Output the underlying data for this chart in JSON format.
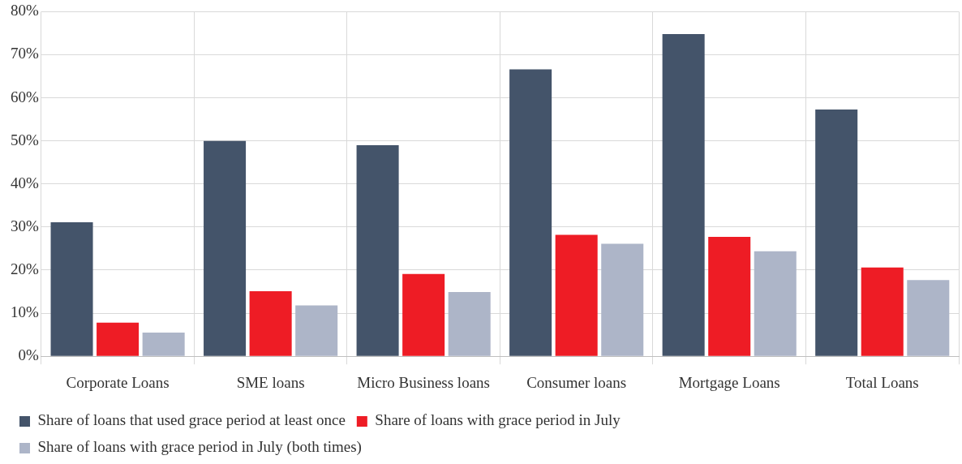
{
  "chart_data": {
    "type": "bar",
    "categories": [
      "Corporate Loans",
      "SME loans",
      "Micro Business loans",
      "Consumer loans",
      "Mortgage Loans",
      "Total Loans"
    ],
    "series": [
      {
        "name": "Share of loans that used grace period at least once",
        "color": "#44546a",
        "values": [
          31.1,
          50.0,
          49.0,
          66.6,
          74.8,
          57.3
        ]
      },
      {
        "name": "Share of loans with grace period in July",
        "color": "#ee1c25",
        "values": [
          7.8,
          15.1,
          19.1,
          28.2,
          27.7,
          20.6
        ]
      },
      {
        "name": "Share of loans with grace period in July (both times)",
        "color": "#adb5c8",
        "values": [
          5.5,
          11.8,
          14.9,
          26.1,
          24.4,
          17.7
        ]
      }
    ],
    "ylim": [
      0,
      80
    ],
    "yticks": [
      {
        "value": 0,
        "label": "0%"
      },
      {
        "value": 10,
        "label": "10%"
      },
      {
        "value": 20,
        "label": "20%"
      },
      {
        "value": 30,
        "label": "30%"
      },
      {
        "value": 40,
        "label": "40%"
      },
      {
        "value": 50,
        "label": "50%"
      },
      {
        "value": 60,
        "label": "60%"
      },
      {
        "value": 70,
        "label": "70%"
      },
      {
        "value": 80,
        "label": "80%"
      }
    ],
    "grid": true,
    "legend": "bottom"
  }
}
